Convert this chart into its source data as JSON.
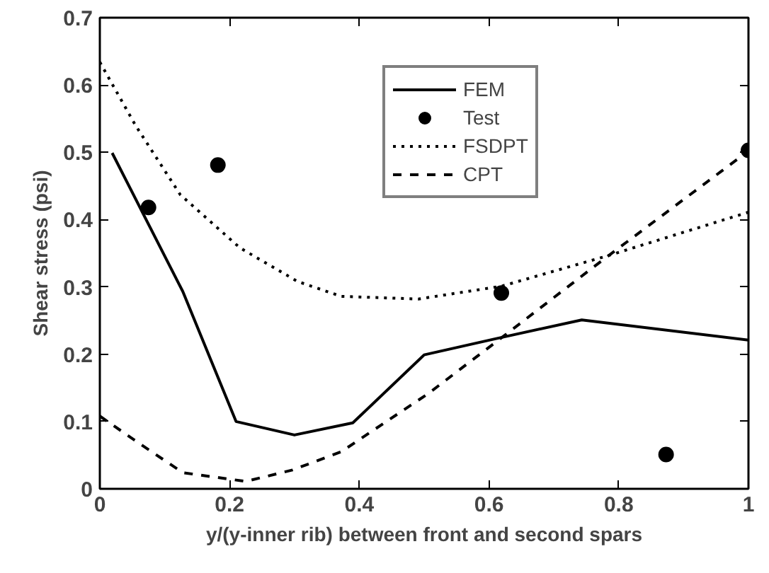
{
  "chart_data": {
    "type": "line",
    "xlabel": "y/(y-inner rib) between front and second spars",
    "ylabel": "Shear stress (psi)",
    "xlim": [
      0,
      1
    ],
    "ylim": [
      0,
      0.7
    ],
    "xticks": [
      0,
      0.2,
      0.4,
      0.6,
      0.8,
      1
    ],
    "yticks": [
      0,
      0.1,
      0.2,
      0.3,
      0.4,
      0.5,
      0.6,
      0.7
    ],
    "grid": false,
    "legend": "top right",
    "series": [
      {
        "name": "FEM",
        "line_style": "solid",
        "color": "#000000",
        "x": [
          0.019,
          0.128,
          0.21,
          0.3,
          0.39,
          0.5,
          0.61,
          0.743,
          1.0
        ],
        "values": [
          0.499,
          0.293,
          0.1,
          0.08,
          0.098,
          0.199,
          0.223,
          0.251,
          0.221
        ]
      },
      {
        "name": "Test",
        "type": "scatter",
        "marker": "circle",
        "color": "#000000",
        "x": [
          0.075,
          0.182,
          0.619,
          0.873,
          1.0
        ],
        "values": [
          0.418,
          0.481,
          0.291,
          0.051,
          0.503
        ]
      },
      {
        "name": "FSDPT",
        "line_style": "dotted",
        "color": "#000000",
        "x": [
          0,
          0.055,
          0.124,
          0.216,
          0.305,
          0.372,
          0.491,
          0.619,
          0.782,
          1
        ],
        "values": [
          0.634,
          0.54,
          0.437,
          0.358,
          0.308,
          0.286,
          0.282,
          0.301,
          0.346,
          0.411
        ]
      },
      {
        "name": "CPT",
        "line_style": "dashed",
        "color": "#000000",
        "x": [
          0,
          0.063,
          0.128,
          0.225,
          0.297,
          0.372,
          0.507,
          0.62,
          0.774,
          1
        ],
        "values": [
          0.108,
          0.066,
          0.024,
          0.011,
          0.028,
          0.055,
          0.142,
          0.225,
          0.339,
          0.502
        ]
      }
    ]
  }
}
